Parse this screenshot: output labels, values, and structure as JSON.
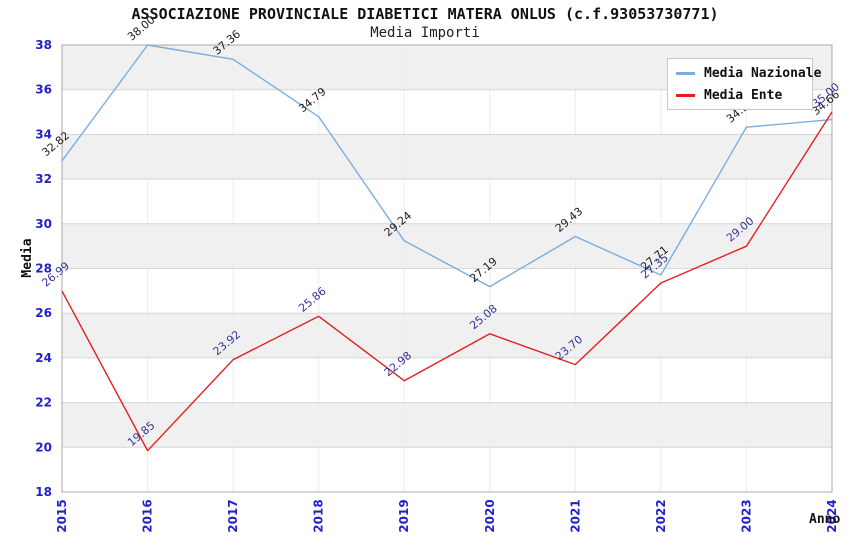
{
  "header": {
    "title": "ASSOCIAZIONE PROVINCIALE DIABETICI MATERA ONLUS (c.f.93053730771)",
    "subtitle": "Media Importi"
  },
  "legend": {
    "items": [
      {
        "label": "Media Nazionale",
        "color": "#7aaede"
      },
      {
        "label": "Media Ente",
        "color": "#e51f1f"
      }
    ]
  },
  "chart_data": {
    "type": "line",
    "title": "ASSOCIAZIONE PROVINCIALE DIABETICI MATERA ONLUS (c.f.93053730771)",
    "subtitle": "Media Importi",
    "xlabel": "Anno",
    "ylabel": "Media",
    "x": [
      2015,
      2016,
      2017,
      2018,
      2019,
      2020,
      2021,
      2022,
      2023,
      2024
    ],
    "series": [
      {
        "name": "Media Nazionale",
        "color": "#7aaede",
        "label_color": "#1a1a1a",
        "values": [
          32.82,
          38.0,
          37.36,
          34.79,
          29.24,
          27.19,
          29.43,
          27.71,
          34.32,
          34.66
        ]
      },
      {
        "name": "Media Ente",
        "color": "#e51f1f",
        "label_color": "#333399",
        "values": [
          26.99,
          19.85,
          23.92,
          25.86,
          22.98,
          25.08,
          23.7,
          27.35,
          29.0,
          35.0
        ]
      }
    ],
    "ylim": [
      18,
      38
    ],
    "ytick_step": 2,
    "grid": true,
    "legend_position": "top-right",
    "styles": {
      "tick_label_color": "#2222cc",
      "band_colors": [
        "#f0f0f0",
        "#ffffff"
      ],
      "hgrid_color": "#d6d6d6",
      "vgrid_color": "#ececec",
      "plot_border_color": "#a8a8a8"
    }
  }
}
